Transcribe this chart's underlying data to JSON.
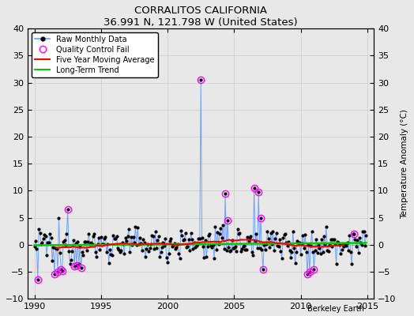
{
  "title": "CORRALITOS CALIFORNIA",
  "subtitle": "36.991 N, 121.798 W (United States)",
  "ylabel": "Temperature Anomaly (°C)",
  "xlabel_note": "Berkeley Earth",
  "xlim": [
    1989.5,
    2015.5
  ],
  "ylim": [
    -10,
    40
  ],
  "yticks": [
    -10,
    -5,
    0,
    5,
    10,
    15,
    20,
    25,
    30,
    35,
    40
  ],
  "xticks": [
    1990,
    1995,
    2000,
    2005,
    2010,
    2015
  ],
  "bg_color": "#e8e8e8",
  "grid_color": "#d0d0d0",
  "line_color": "#6699ff",
  "ma_color": "#ff0000",
  "trend_color": "#00cc00",
  "qc_color": "#ff00ff",
  "dot_color": "#000000",
  "figsize": [
    5.24,
    4.0
  ],
  "dpi": 100
}
